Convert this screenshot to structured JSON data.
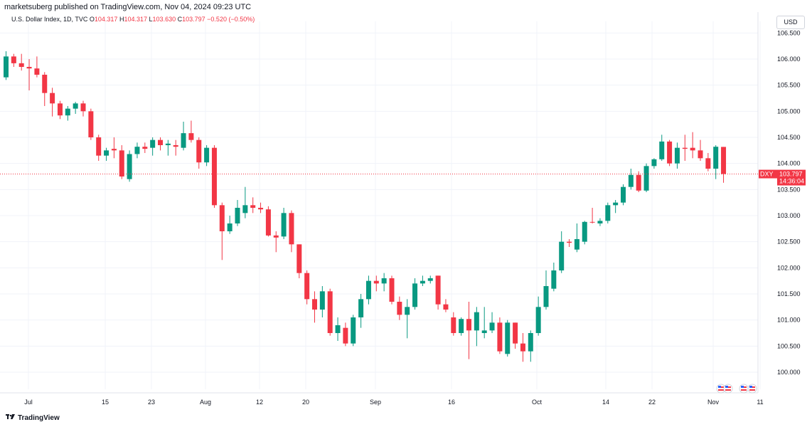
{
  "header": {
    "publisher": "marketsuberg published on TradingView.com, Nov 04, 2024 09:23 UTC",
    "symbol_name": "U.S. Dollar Index, 1D, TVC",
    "o_label": "O",
    "o_value": "104.317",
    "h_label": "H",
    "h_value": "104.317",
    "l_label": "L",
    "l_value": "103.630",
    "c_label": "C",
    "c_value": "103.797",
    "change": "−0.520 (−0.50%)",
    "currency": "USD"
  },
  "price_tag": {
    "symbol": "DXY",
    "price": "103.797",
    "countdown": "14:36:04"
  },
  "footer": {
    "brand": "TradingView"
  },
  "colors": {
    "up": "#089981",
    "down": "#f23645",
    "grid": "#f0f3fa",
    "text": "#131722"
  },
  "chart_data": {
    "type": "candlestick",
    "title": "U.S. Dollar Index, 1D, TVC",
    "ylim": [
      99.7,
      106.7
    ],
    "yticks": [
      "106.500",
      "106.000",
      "105.500",
      "105.000",
      "104.500",
      "104.000",
      "103.500",
      "103.000",
      "102.500",
      "102.000",
      "101.500",
      "101.000",
      "100.500",
      "100.000"
    ],
    "xticks": [
      "Jul",
      "15",
      "23",
      "Aug",
      "12",
      "20",
      "Sep",
      "16",
      "Oct",
      "14",
      "22",
      "Nov",
      "11"
    ],
    "last_price": 103.797,
    "candles": [
      {
        "o": 105.65,
        "h": 106.15,
        "l": 105.6,
        "c": 106.05
      },
      {
        "o": 106.05,
        "h": 106.1,
        "l": 105.85,
        "c": 105.92
      },
      {
        "o": 105.92,
        "h": 106.1,
        "l": 105.78,
        "c": 105.85
      },
      {
        "o": 105.85,
        "h": 106.0,
        "l": 105.4,
        "c": 105.82
      },
      {
        "o": 105.82,
        "h": 106.05,
        "l": 105.65,
        "c": 105.7
      },
      {
        "o": 105.7,
        "h": 105.75,
        "l": 105.1,
        "c": 105.35
      },
      {
        "o": 105.35,
        "h": 105.45,
        "l": 104.9,
        "c": 105.15
      },
      {
        "o": 105.15,
        "h": 105.2,
        "l": 104.85,
        "c": 104.92
      },
      {
        "o": 104.92,
        "h": 105.1,
        "l": 104.82,
        "c": 105.05
      },
      {
        "o": 105.05,
        "h": 105.18,
        "l": 104.95,
        "c": 105.15
      },
      {
        "o": 105.15,
        "h": 105.2,
        "l": 104.9,
        "c": 105.0
      },
      {
        "o": 105.0,
        "h": 105.05,
        "l": 104.45,
        "c": 104.5
      },
      {
        "o": 104.5,
        "h": 104.55,
        "l": 104.05,
        "c": 104.15
      },
      {
        "o": 104.15,
        "h": 104.3,
        "l": 104.05,
        "c": 104.25
      },
      {
        "o": 104.28,
        "h": 104.5,
        "l": 104.1,
        "c": 104.25
      },
      {
        "o": 104.25,
        "h": 104.35,
        "l": 103.7,
        "c": 103.75
      },
      {
        "o": 103.7,
        "h": 104.25,
        "l": 103.65,
        "c": 104.18
      },
      {
        "o": 104.18,
        "h": 104.4,
        "l": 104.1,
        "c": 104.32
      },
      {
        "o": 104.32,
        "h": 104.4,
        "l": 104.2,
        "c": 104.28
      },
      {
        "o": 104.3,
        "h": 104.5,
        "l": 104.15,
        "c": 104.45
      },
      {
        "o": 104.45,
        "h": 104.5,
        "l": 104.25,
        "c": 104.35
      },
      {
        "o": 104.35,
        "h": 104.45,
        "l": 104.15,
        "c": 104.38
      },
      {
        "o": 104.35,
        "h": 104.45,
        "l": 104.15,
        "c": 104.32
      },
      {
        "o": 104.3,
        "h": 104.8,
        "l": 104.25,
        "c": 104.58
      },
      {
        "o": 104.58,
        "h": 104.82,
        "l": 104.4,
        "c": 104.45
      },
      {
        "o": 104.45,
        "h": 104.5,
        "l": 103.9,
        "c": 104.02
      },
      {
        "o": 104.02,
        "h": 104.35,
        "l": 103.95,
        "c": 104.3
      },
      {
        "o": 104.3,
        "h": 104.35,
        "l": 103.15,
        "c": 103.2
      },
      {
        "o": 103.2,
        "h": 103.25,
        "l": 102.15,
        "c": 102.7
      },
      {
        "o": 102.7,
        "h": 103.0,
        "l": 102.65,
        "c": 102.85
      },
      {
        "o": 102.85,
        "h": 103.3,
        "l": 102.8,
        "c": 103.15
      },
      {
        "o": 103.05,
        "h": 103.55,
        "l": 102.95,
        "c": 103.2
      },
      {
        "o": 103.2,
        "h": 103.35,
        "l": 103.05,
        "c": 103.15
      },
      {
        "o": 103.15,
        "h": 103.25,
        "l": 103.05,
        "c": 103.12
      },
      {
        "o": 103.12,
        "h": 103.18,
        "l": 102.6,
        "c": 102.62
      },
      {
        "o": 102.62,
        "h": 102.7,
        "l": 102.3,
        "c": 102.58
      },
      {
        "o": 102.6,
        "h": 103.15,
        "l": 102.55,
        "c": 103.05
      },
      {
        "o": 103.05,
        "h": 103.1,
        "l": 102.3,
        "c": 102.45
      },
      {
        "o": 102.45,
        "h": 102.45,
        "l": 101.8,
        "c": 101.9
      },
      {
        "o": 101.9,
        "h": 101.95,
        "l": 101.3,
        "c": 101.4
      },
      {
        "o": 101.4,
        "h": 101.55,
        "l": 100.95,
        "c": 101.2
      },
      {
        "o": 101.2,
        "h": 101.65,
        "l": 101.05,
        "c": 101.55
      },
      {
        "o": 101.55,
        "h": 101.6,
        "l": 100.7,
        "c": 100.75
      },
      {
        "o": 100.75,
        "h": 101.05,
        "l": 100.6,
        "c": 100.9
      },
      {
        "o": 100.85,
        "h": 100.95,
        "l": 100.5,
        "c": 100.55
      },
      {
        "o": 100.55,
        "h": 101.1,
        "l": 100.5,
        "c": 101.05
      },
      {
        "o": 101.05,
        "h": 101.5,
        "l": 100.85,
        "c": 101.4
      },
      {
        "o": 101.4,
        "h": 101.85,
        "l": 101.3,
        "c": 101.75
      },
      {
        "o": 101.75,
        "h": 101.85,
        "l": 101.55,
        "c": 101.7
      },
      {
        "o": 101.7,
        "h": 101.9,
        "l": 101.55,
        "c": 101.8
      },
      {
        "o": 101.8,
        "h": 101.85,
        "l": 101.3,
        "c": 101.35
      },
      {
        "o": 101.35,
        "h": 101.45,
        "l": 101.0,
        "c": 101.1
      },
      {
        "o": 101.1,
        "h": 101.4,
        "l": 100.65,
        "c": 101.25
      },
      {
        "o": 101.25,
        "h": 101.8,
        "l": 101.2,
        "c": 101.7
      },
      {
        "o": 101.7,
        "h": 101.85,
        "l": 101.65,
        "c": 101.75
      },
      {
        "o": 101.75,
        "h": 101.85,
        "l": 101.7,
        "c": 101.8
      },
      {
        "o": 101.85,
        "h": 101.85,
        "l": 101.2,
        "c": 101.3
      },
      {
        "o": 101.3,
        "h": 101.4,
        "l": 101.15,
        "c": 101.2
      },
      {
        "o": 101.05,
        "h": 101.15,
        "l": 100.7,
        "c": 100.75
      },
      {
        "o": 100.75,
        "h": 101.05,
        "l": 100.7,
        "c": 101.02
      },
      {
        "o": 101.02,
        "h": 101.35,
        "l": 100.25,
        "c": 100.8
      },
      {
        "o": 100.8,
        "h": 101.25,
        "l": 100.5,
        "c": 101.15
      },
      {
        "o": 100.75,
        "h": 101.25,
        "l": 100.65,
        "c": 100.8
      },
      {
        "o": 100.8,
        "h": 101.15,
        "l": 100.75,
        "c": 100.95
      },
      {
        "o": 100.95,
        "h": 101.05,
        "l": 100.35,
        "c": 100.4
      },
      {
        "o": 100.35,
        "h": 101.0,
        "l": 100.3,
        "c": 100.95
      },
      {
        "o": 100.95,
        "h": 100.95,
        "l": 100.45,
        "c": 100.55
      },
      {
        "o": 100.55,
        "h": 100.75,
        "l": 100.2,
        "c": 100.4
      },
      {
        "o": 100.4,
        "h": 100.8,
        "l": 100.2,
        "c": 100.75
      },
      {
        "o": 100.75,
        "h": 101.45,
        "l": 100.7,
        "c": 101.25
      },
      {
        "o": 101.25,
        "h": 101.95,
        "l": 101.2,
        "c": 101.65
      },
      {
        "o": 101.6,
        "h": 102.1,
        "l": 101.55,
        "c": 101.95
      },
      {
        "o": 101.95,
        "h": 102.7,
        "l": 101.9,
        "c": 102.5
      },
      {
        "o": 102.5,
        "h": 102.55,
        "l": 102.4,
        "c": 102.48
      },
      {
        "o": 102.35,
        "h": 102.85,
        "l": 102.3,
        "c": 102.55
      },
      {
        "o": 102.5,
        "h": 102.9,
        "l": 102.45,
        "c": 102.88
      },
      {
        "o": 102.88,
        "h": 103.15,
        "l": 102.85,
        "c": 102.87
      },
      {
        "o": 102.85,
        "h": 102.95,
        "l": 102.8,
        "c": 102.9
      },
      {
        "o": 102.9,
        "h": 103.25,
        "l": 102.85,
        "c": 103.2
      },
      {
        "o": 103.2,
        "h": 103.3,
        "l": 103.05,
        "c": 103.25
      },
      {
        "o": 103.25,
        "h": 103.6,
        "l": 103.2,
        "c": 103.55
      },
      {
        "o": 103.55,
        "h": 103.9,
        "l": 103.5,
        "c": 103.78
      },
      {
        "o": 103.78,
        "h": 103.85,
        "l": 103.45,
        "c": 103.48
      },
      {
        "o": 103.48,
        "h": 104.0,
        "l": 103.45,
        "c": 103.95
      },
      {
        "o": 103.95,
        "h": 104.1,
        "l": 103.9,
        "c": 104.08
      },
      {
        "o": 104.08,
        "h": 104.55,
        "l": 104.05,
        "c": 104.42
      },
      {
        "o": 104.42,
        "h": 104.45,
        "l": 103.95,
        "c": 104.0
      },
      {
        "o": 104.0,
        "h": 104.4,
        "l": 103.9,
        "c": 104.3
      },
      {
        "o": 104.3,
        "h": 104.55,
        "l": 104.05,
        "c": 104.28
      },
      {
        "o": 104.3,
        "h": 104.6,
        "l": 104.1,
        "c": 104.25
      },
      {
        "o": 104.25,
        "h": 104.45,
        "l": 104.05,
        "c": 104.1
      },
      {
        "o": 104.1,
        "h": 104.2,
        "l": 103.85,
        "c": 103.9
      },
      {
        "o": 103.9,
        "h": 104.35,
        "l": 103.7,
        "c": 104.32
      },
      {
        "o": 104.317,
        "h": 104.317,
        "l": 103.63,
        "c": 103.797
      }
    ]
  }
}
